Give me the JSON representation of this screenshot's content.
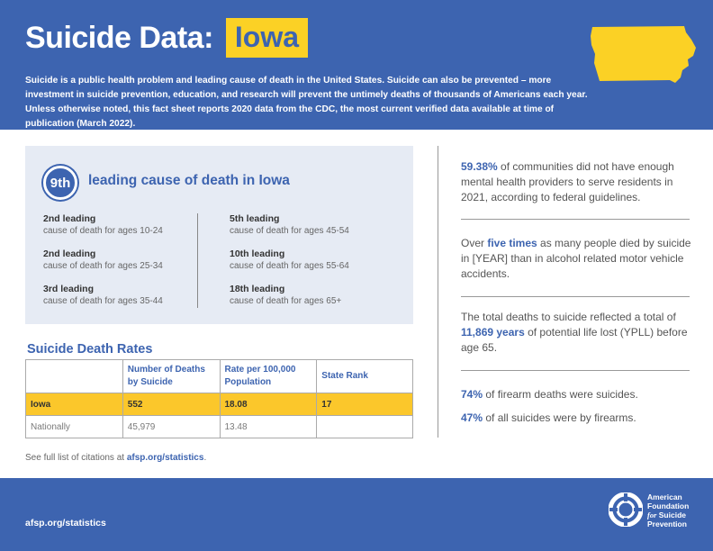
{
  "header": {
    "title": "Suicide Data:",
    "state": "Iowa",
    "intro": "Suicide is a public health problem and leading cause of death in the United States. Suicide can also be prevented – more investment in suicide prevention, education, and research will prevent the untimely deaths of thousands of Americans each year. Unless otherwise noted, this fact sheet reports 2020 data from the CDC, the most current verified data available at time of publication (March 2022)."
  },
  "cause": {
    "rank": "9th",
    "heading": "leading cause of death in Iowa",
    "items": [
      {
        "rank": "2nd leading",
        "desc": "cause of death for ages 10-24"
      },
      {
        "rank": "2nd leading",
        "desc": "cause of death for ages 25-34"
      },
      {
        "rank": "3rd leading",
        "desc": "cause of death for ages 35-44"
      },
      {
        "rank": "5th leading",
        "desc": "cause of death for ages 45-54"
      },
      {
        "rank": "10th leading",
        "desc": "cause of death for ages 55-64"
      },
      {
        "rank": "18th leading",
        "desc": "cause of death for ages 65+"
      }
    ]
  },
  "rates": {
    "title": "Suicide Death Rates",
    "headers": [
      "",
      "Number of Deaths by Suicide",
      "Rate per 100,000 Population",
      "State Rank"
    ],
    "rows": [
      [
        "Iowa",
        "552",
        "18.08",
        "17"
      ],
      [
        "Nationally",
        "45,979",
        "13.48",
        ""
      ]
    ]
  },
  "citation": {
    "text": "See full list of citations at",
    "link": "afsp.org/statistics",
    "end": "."
  },
  "stats": {
    "s1_bold": "59.38%",
    "s1_text": " of communities did not have enough mental health providers to serve residents in 2021, according to federal guidelines.",
    "s2_pre": "Over ",
    "s2_bold": "five times",
    "s2_text": " as many people died by suicide in [YEAR] than in alcohol related motor vehicle accidents.",
    "s3_pre": "The total deaths to suicide reflected a total of ",
    "s3_bold": "11,869 years",
    "s3_text": " of potential life lost (YPLL) before age 65.",
    "s4_bold": "74%",
    "s4_text": " of firearm deaths were suicides.",
    "s5_bold": "47%",
    "s5_text": " of all suicides were by firearms."
  },
  "footer": {
    "link": "afsp.org/statistics",
    "logo_line1": "American",
    "logo_line2": "Foundation",
    "logo_line3_italic": "for",
    "logo_line3": " Suicide",
    "logo_line4": "Prevention"
  },
  "colors": {
    "brand_blue": "#3d64b0",
    "accent_yellow": "#fbd125",
    "panel_gray": "#e6ebf4"
  }
}
